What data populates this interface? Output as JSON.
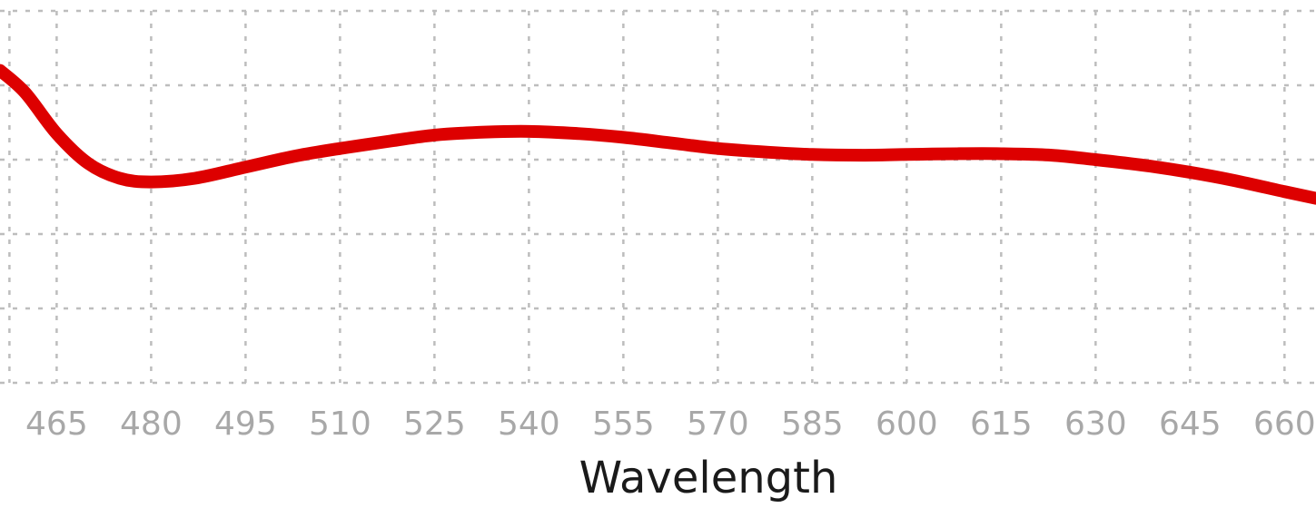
{
  "chart_data": {
    "type": "line",
    "title": "",
    "xlabel": "Wavelength",
    "ylabel": "",
    "x_ticks": [
      "465",
      "480",
      "495",
      "510",
      "525",
      "540",
      "555",
      "570",
      "585",
      "600",
      "615",
      "630",
      "645",
      "660"
    ],
    "xlim": [
      456,
      665
    ],
    "ylim": [
      0,
      5
    ],
    "y_gridlines": [
      0,
      1,
      2,
      3,
      4,
      5
    ],
    "grid": true,
    "series": [
      {
        "color": "#dd0000",
        "x": [
          456,
          460,
          465,
          470,
          475,
          480,
          487,
          495,
          503,
          510,
          518,
          525,
          533,
          540,
          548,
          555,
          563,
          570,
          578,
          585,
          593,
          600,
          608,
          615,
          623,
          630,
          638,
          645,
          652,
          660,
          665
        ],
        "y": [
          4.2,
          3.9,
          3.35,
          2.95,
          2.75,
          2.7,
          2.75,
          2.9,
          3.05,
          3.15,
          3.25,
          3.33,
          3.37,
          3.38,
          3.35,
          3.3,
          3.22,
          3.15,
          3.1,
          3.07,
          3.06,
          3.07,
          3.08,
          3.08,
          3.06,
          3.0,
          2.92,
          2.83,
          2.72,
          2.57,
          2.48
        ]
      }
    ]
  }
}
